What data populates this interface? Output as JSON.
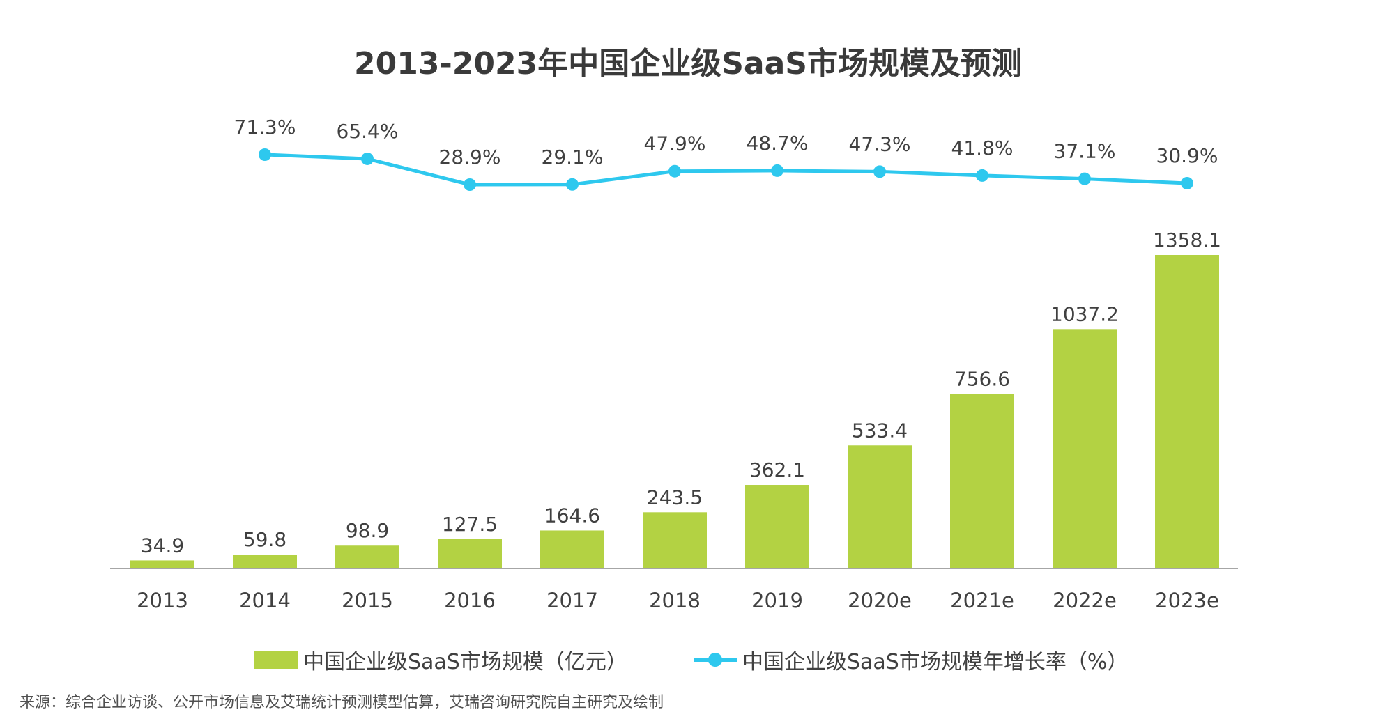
{
  "chart_data": {
    "type": "bar",
    "title": "2013-2023年中国企业级SaaS市场规模及预测",
    "categories": [
      "2013",
      "2014",
      "2015",
      "2016",
      "2017",
      "2018",
      "2019",
      "2020e",
      "2021e",
      "2022e",
      "2023e"
    ],
    "series": [
      {
        "name": "中国企业级SaaS市场规模（亿元）",
        "type": "bar",
        "color": "#b3d243",
        "values": [
          34.9,
          59.8,
          98.9,
          127.5,
          164.6,
          243.5,
          362.1,
          533.4,
          756.6,
          1037.2,
          1358.1
        ],
        "labels": [
          "34.9",
          "59.8",
          "98.9",
          "127.5",
          "164.6",
          "243.5",
          "362.1",
          "533.4",
          "756.6",
          "1037.2",
          "1358.1"
        ]
      },
      {
        "name": "中国企业级SaaS市场规模年增长率（%）",
        "type": "line",
        "color": "#2ec8ee",
        "values": [
          null,
          71.3,
          65.4,
          28.9,
          29.1,
          47.9,
          48.7,
          47.3,
          41.8,
          37.1,
          30.9
        ],
        "labels": [
          null,
          "71.3%",
          "65.4%",
          "28.9%",
          "29.1%",
          "47.9%",
          "48.7%",
          "47.3%",
          "41.8%",
          "37.1%",
          "30.9%"
        ]
      }
    ],
    "legend": {
      "position": "bottom"
    },
    "grid": false
  },
  "source_note": "来源：综合企业访谈、公开市场信息及艾瑞统计预测模型估算，艾瑞咨询研究院自主研究及绘制"
}
